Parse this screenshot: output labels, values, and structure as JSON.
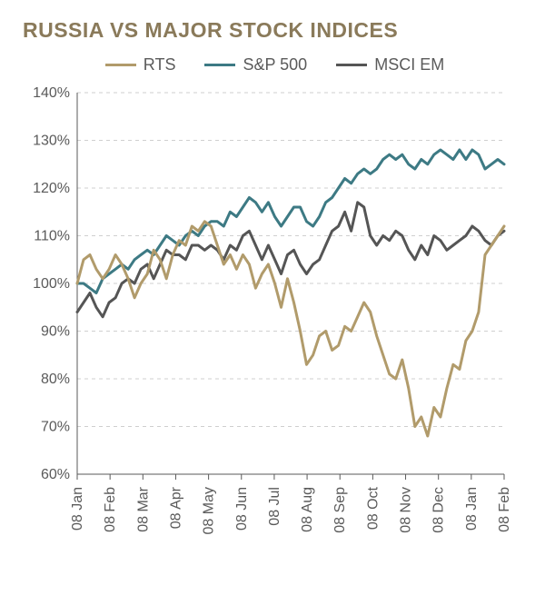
{
  "chart": {
    "type": "line",
    "title": "RUSSIA VS MAJOR STOCK INDICES",
    "title_color": "#8a7a5a",
    "title_fontsize": 23,
    "background_color": "#ffffff",
    "text_color": "#5a5a5a",
    "grid_color": "#cfcfcf",
    "axis_color": "#5a5a5a",
    "line_width": 3,
    "ylim": [
      60,
      140
    ],
    "ytick_step": 10,
    "yticks": [
      "60%",
      "70%",
      "80%",
      "90%",
      "100%",
      "110%",
      "120%",
      "130%",
      "140%"
    ],
    "xticks": [
      "08 Jan",
      "08 Feb",
      "08 Mar",
      "08 Apr",
      "08 May",
      "08 Jun",
      "08 Jul",
      "08 Aug",
      "08 Sep",
      "08 Oct",
      "08 Nov",
      "08 Dec",
      "08 Jan",
      "08 Feb"
    ],
    "legend": {
      "items": [
        {
          "label": "RTS",
          "color": "#b19b6b"
        },
        {
          "label": "S&P 500",
          "color": "#3d7a84"
        },
        {
          "label": "MSCI EM",
          "color": "#555555"
        }
      ],
      "swatch_width": 34,
      "fontsize": 18,
      "text_color": "#5a5a5a"
    },
    "series": {
      "RTS": {
        "color": "#b19b6b",
        "values": [
          100,
          105,
          106,
          103,
          101,
          103,
          106,
          104,
          101,
          97,
          100,
          102,
          107,
          105,
          101,
          106,
          109,
          108,
          112,
          111,
          113,
          112,
          108,
          104,
          106,
          103,
          106,
          104,
          99,
          102,
          104,
          100,
          95,
          101,
          96,
          90,
          83,
          85,
          89,
          90,
          86,
          87,
          91,
          90,
          93,
          96,
          94,
          89,
          85,
          81,
          80,
          84,
          78,
          70,
          72,
          68,
          74,
          72,
          78,
          83,
          82,
          88,
          90,
          94,
          106,
          108,
          110,
          112
        ]
      },
      "SP500": {
        "color": "#3d7a84",
        "values": [
          100,
          100,
          99,
          98,
          101,
          102,
          103,
          104,
          103,
          105,
          106,
          107,
          106,
          108,
          110,
          109,
          108,
          110,
          111,
          110,
          112,
          113,
          113,
          112,
          115,
          114,
          116,
          118,
          117,
          115,
          117,
          114,
          112,
          114,
          116,
          116,
          113,
          112,
          114,
          117,
          118,
          120,
          122,
          121,
          123,
          124,
          123,
          124,
          126,
          127,
          126,
          127,
          125,
          124,
          126,
          125,
          127,
          128,
          127,
          126,
          128,
          126,
          128,
          127,
          124,
          125,
          126,
          125
        ]
      },
      "MSCIEM": {
        "color": "#555555",
        "values": [
          94,
          96,
          98,
          95,
          93,
          96,
          97,
          100,
          101,
          100,
          103,
          104,
          101,
          104,
          107,
          106,
          106,
          105,
          108,
          108,
          107,
          108,
          107,
          105,
          108,
          107,
          110,
          111,
          108,
          105,
          108,
          105,
          102,
          106,
          107,
          104,
          102,
          104,
          105,
          108,
          111,
          112,
          115,
          111,
          117,
          116,
          110,
          108,
          110,
          109,
          111,
          110,
          107,
          105,
          108,
          106,
          110,
          109,
          107,
          108,
          109,
          110,
          112,
          111,
          109,
          108,
          110,
          111
        ]
      }
    },
    "x_count": 68
  }
}
